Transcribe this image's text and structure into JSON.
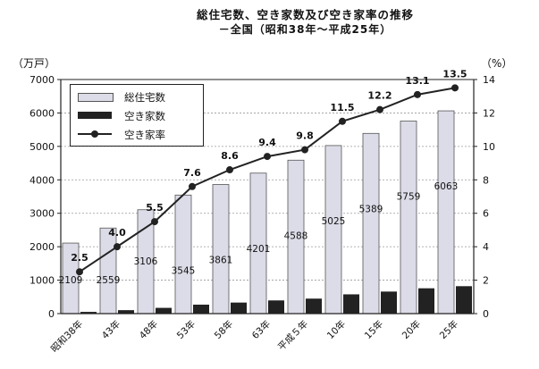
{
  "title_line1": "総住宅数、空き家数及び空き家率の推移",
  "title_line2": "－全国（昭和38年～平成25年）",
  "left_unit": "（万戸）",
  "right_unit": "（%）",
  "legend": {
    "total": "総住宅数",
    "vacant": "空き家数",
    "rate": "空き家率"
  },
  "colors": {
    "total_bar": "#dcdce8",
    "vacant_bar": "#222222",
    "rate_line": "#222222"
  },
  "chart_data": {
    "type": "bar",
    "categories": [
      "昭和38年",
      "43年",
      "48年",
      "53年",
      "58年",
      "63年",
      "平成５年",
      "10年",
      "15年",
      "20年",
      "25年"
    ],
    "series": [
      {
        "name": "総住宅数",
        "type": "bar",
        "axis": "left",
        "values": [
          2109,
          2559,
          3106,
          3545,
          3861,
          4201,
          4588,
          5025,
          5389,
          5759,
          6063
        ]
      },
      {
        "name": "空き家数",
        "type": "bar",
        "axis": "left",
        "values": [
          52,
          103,
          172,
          268,
          330,
          394,
          448,
          576,
          659,
          757,
          820
        ]
      },
      {
        "name": "空き家率",
        "type": "line",
        "axis": "right",
        "values": [
          2.5,
          4.0,
          5.5,
          7.6,
          8.6,
          9.4,
          9.8,
          11.5,
          12.2,
          13.1,
          13.5
        ]
      }
    ],
    "total_labels": [
      "2109",
      "2559",
      "3106",
      "3545",
      "3861",
      "4201",
      "4588",
      "5025",
      "5389",
      "5759",
      "6063"
    ],
    "rate_labels": [
      "2.5",
      "4.0",
      "5.5",
      "7.6",
      "8.6",
      "9.4",
      "9.8",
      "11.5",
      "12.2",
      "13.1",
      "13.5"
    ],
    "ylim_left": [
      0,
      7000
    ],
    "yticks_left": [
      "0",
      "1000",
      "2000",
      "3000",
      "4000",
      "5000",
      "6000",
      "7000"
    ],
    "ylim_right": [
      0,
      14
    ],
    "yticks_right": [
      "0",
      "2",
      "4",
      "6",
      "8",
      "10",
      "12",
      "14"
    ],
    "grid": true,
    "legend_position": "top-left"
  }
}
